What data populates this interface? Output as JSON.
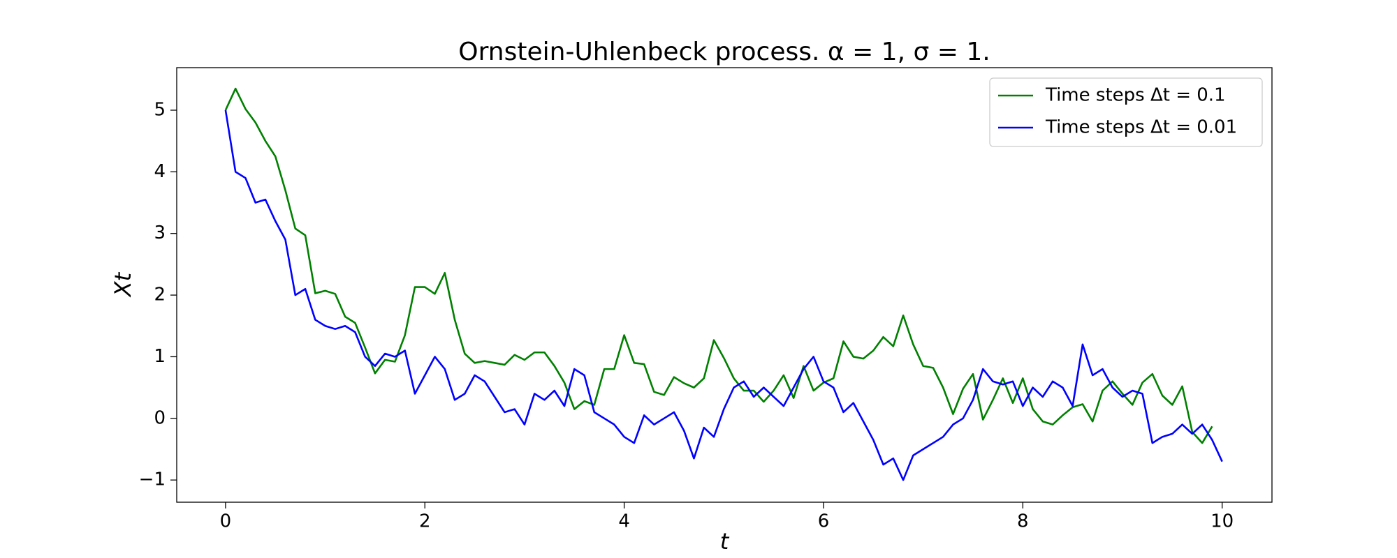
{
  "chart_data": {
    "type": "line",
    "title": "Ornstein-Uhlenbeck process. α = 1, σ = 1.",
    "xlabel": "t",
    "ylabel": "Xt",
    "xlim": [
      -0.49,
      10.5
    ],
    "ylim": [
      -1.36,
      5.69
    ],
    "xticks": [
      0,
      2,
      4,
      6,
      8,
      10
    ],
    "yticks": [
      {
        "value": -1,
        "label": "−1"
      },
      0,
      1,
      2,
      3,
      4,
      5
    ],
    "legend": "upper right",
    "series": [
      {
        "name": "Time steps Δt = 0.1",
        "color": "#008000",
        "x": [
          0,
          0.1,
          0.2,
          0.3,
          0.4,
          0.5,
          0.6,
          0.7,
          0.8,
          0.9,
          1,
          1.1,
          1.2,
          1.3,
          1.4,
          1.5,
          1.6,
          1.7,
          1.8,
          1.9,
          2,
          2.1,
          2.2,
          2.3,
          2.4,
          2.5,
          2.6,
          2.7,
          2.8,
          2.9,
          3,
          3.1,
          3.2,
          3.3,
          3.4,
          3.5,
          3.6,
          3.7,
          3.8,
          3.9,
          4,
          4.1,
          4.2,
          4.3,
          4.4,
          4.5,
          4.6,
          4.7,
          4.8,
          4.9,
          5,
          5.1,
          5.2,
          5.3,
          5.4,
          5.5,
          5.6,
          5.7,
          5.8,
          5.9,
          6,
          6.1,
          6.2,
          6.3,
          6.4,
          6.5,
          6.6,
          6.7,
          6.8,
          6.9,
          7,
          7.1,
          7.2,
          7.3,
          7.4,
          7.5,
          7.6,
          7.7,
          7.8,
          7.9,
          8,
          8.1,
          8.2,
          8.3,
          8.4,
          8.5,
          8.6,
          8.7,
          8.8,
          8.9,
          9,
          9.1,
          9.2,
          9.3,
          9.4,
          9.5,
          9.6,
          9.7,
          9.8,
          9.9
        ],
        "values": [
          5.0,
          5.35,
          5.02,
          4.8,
          4.5,
          4.25,
          3.7,
          3.08,
          2.97,
          2.03,
          2.07,
          2.02,
          1.65,
          1.55,
          1.15,
          0.73,
          0.95,
          0.92,
          1.35,
          2.13,
          2.13,
          2.02,
          2.36,
          1.6,
          1.05,
          0.9,
          0.93,
          0.9,
          0.87,
          1.03,
          0.95,
          1.07,
          1.07,
          0.85,
          0.58,
          0.15,
          0.28,
          0.22,
          0.8,
          0.8,
          1.35,
          0.9,
          0.88,
          0.43,
          0.38,
          0.67,
          0.57,
          0.5,
          0.65,
          1.27,
          0.98,
          0.65,
          0.45,
          0.45,
          0.27,
          0.45,
          0.7,
          0.33,
          0.85,
          0.45,
          0.58,
          0.65,
          1.25,
          1.0,
          0.97,
          1.1,
          1.32,
          1.17,
          1.67,
          1.2,
          0.85,
          0.82,
          0.5,
          0.07,
          0.48,
          0.72,
          -0.02,
          0.3,
          0.65,
          0.25,
          0.65,
          0.15,
          -0.05,
          -0.1,
          0.05,
          0.18,
          0.23,
          -0.05,
          0.45,
          0.6,
          0.4,
          0.22,
          0.58,
          0.72,
          0.37,
          0.22,
          0.52,
          -0.22,
          -0.4,
          -0.13
        ]
      },
      {
        "name": "Time steps Δt = 0.01",
        "color": "#0000ff",
        "x": [
          0,
          0.1,
          0.2,
          0.3,
          0.4,
          0.5,
          0.6,
          0.7,
          0.8,
          0.9,
          1,
          1.1,
          1.2,
          1.3,
          1.4,
          1.5,
          1.6,
          1.7,
          1.8,
          1.9,
          2,
          2.1,
          2.2,
          2.3,
          2.4,
          2.5,
          2.6,
          2.7,
          2.8,
          2.9,
          3,
          3.1,
          3.2,
          3.3,
          3.4,
          3.5,
          3.6,
          3.7,
          3.8,
          3.9,
          4,
          4.1,
          4.2,
          4.3,
          4.4,
          4.5,
          4.6,
          4.7,
          4.8,
          4.9,
          5,
          5.1,
          5.2,
          5.3,
          5.4,
          5.5,
          5.6,
          5.7,
          5.8,
          5.9,
          6,
          6.1,
          6.2,
          6.3,
          6.4,
          6.5,
          6.6,
          6.7,
          6.8,
          6.9,
          7,
          7.1,
          7.2,
          7.3,
          7.4,
          7.5,
          7.6,
          7.7,
          7.8,
          7.9,
          8,
          8.1,
          8.2,
          8.3,
          8.4,
          8.5,
          8.6,
          8.7,
          8.8,
          8.9,
          9,
          9.1,
          9.2,
          9.3,
          9.4,
          9.5,
          9.6,
          9.7,
          9.8,
          9.9,
          10
        ],
        "values": [
          5.0,
          4.0,
          3.9,
          3.5,
          3.55,
          3.2,
          2.9,
          2.0,
          2.1,
          1.6,
          1.5,
          1.45,
          1.5,
          1.4,
          1.0,
          0.85,
          1.05,
          1.0,
          1.1,
          0.4,
          0.7,
          1.0,
          0.8,
          0.3,
          0.4,
          0.7,
          0.6,
          0.35,
          0.1,
          0.15,
          -0.1,
          0.4,
          0.3,
          0.45,
          0.2,
          0.8,
          0.7,
          0.1,
          0.0,
          -0.1,
          -0.3,
          -0.4,
          0.05,
          -0.1,
          0.0,
          0.1,
          -0.2,
          -0.65,
          -0.15,
          -0.3,
          0.15,
          0.5,
          0.6,
          0.35,
          0.5,
          0.35,
          0.2,
          0.5,
          0.8,
          1.0,
          0.6,
          0.5,
          0.1,
          0.25,
          -0.05,
          -0.35,
          -0.75,
          -0.65,
          -1.0,
          -0.6,
          -0.5,
          -0.4,
          -0.3,
          -0.1,
          0.0,
          0.3,
          0.8,
          0.6,
          0.55,
          0.6,
          0.2,
          0.5,
          0.35,
          0.6,
          0.5,
          0.2,
          1.2,
          0.7,
          0.8,
          0.5,
          0.35,
          0.45,
          0.4,
          -0.4,
          -0.3,
          -0.25,
          -0.1,
          -0.25,
          -0.1,
          -0.35,
          -0.7
        ]
      }
    ]
  }
}
